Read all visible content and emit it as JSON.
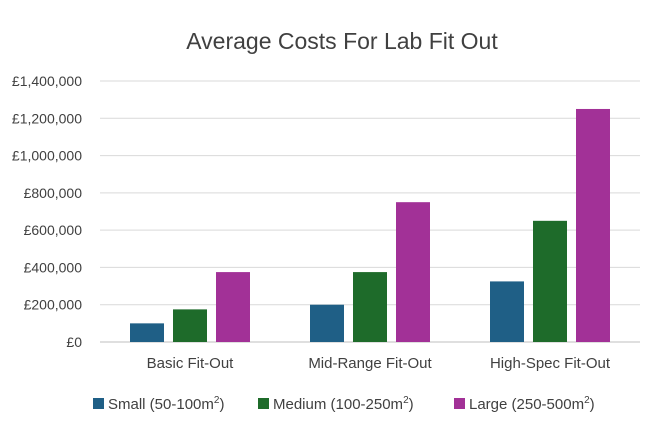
{
  "chart_data": {
    "type": "bar",
    "title": "Average Costs For Lab Fit Out",
    "categories": [
      "Basic Fit-Out",
      "Mid-Range Fit-Out",
      "High-Spec Fit-Out"
    ],
    "series": [
      {
        "name": "Small (50-100m",
        "sup": "2",
        "suffix": ")",
        "color": "#1f5f86",
        "values": [
          100000,
          200000,
          325000
        ]
      },
      {
        "name": "Medium (100-250m",
        "sup": "2",
        "suffix": ")",
        "color": "#1e6b2a",
        "values": [
          175000,
          375000,
          650000
        ]
      },
      {
        "name": "Large (250-500m",
        "sup": "2",
        "suffix": ")",
        "color": "#a23197",
        "values": [
          375000,
          750000,
          1250000
        ]
      }
    ],
    "ylim": [
      0,
      1400000
    ],
    "yticks": [
      "£0",
      "£200,000",
      "£400,000",
      "£600,000",
      "£800,000",
      "£1,000,000",
      "£1,200,000",
      "£1,400,000"
    ],
    "ytick_values": [
      0,
      200000,
      400000,
      600000,
      800000,
      1000000,
      1200000,
      1400000
    ],
    "grid": true,
    "legend": "bottom"
  }
}
